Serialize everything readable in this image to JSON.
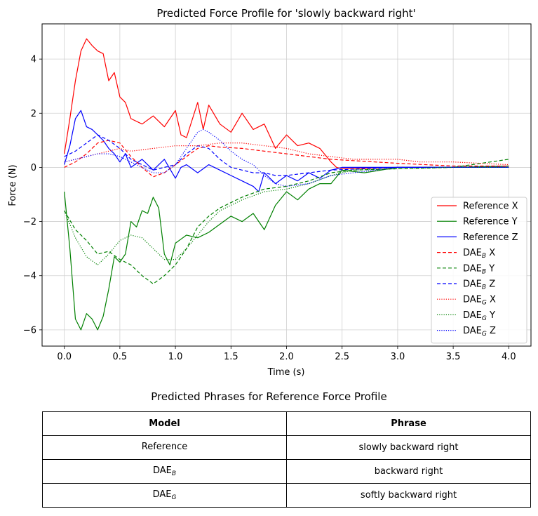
{
  "chart_data": {
    "type": "line",
    "title": "Predicted Force Profile for 'slowly backward right'",
    "xlabel": "Time (s)",
    "ylabel": "Force (N)",
    "xlim": [
      -0.2,
      4.2
    ],
    "ylim": [
      -6.6,
      5.3
    ],
    "xticks": [
      0.0,
      0.5,
      1.0,
      1.5,
      2.0,
      2.5,
      3.0,
      3.5,
      4.0
    ],
    "xtick_labels": [
      "0.0",
      "0.5",
      "1.0",
      "1.5",
      "2.0",
      "2.5",
      "3.0",
      "3.5",
      "4.0"
    ],
    "yticks": [
      -6,
      -4,
      -2,
      0,
      2,
      4
    ],
    "ytick_labels": [
      "−6",
      "−4",
      "−2",
      "0",
      "2",
      "4"
    ],
    "grid": true,
    "legend_position": "lower-right",
    "series": [
      {
        "name": "Reference X",
        "legend_base": "Reference",
        "legend_sub": "",
        "legend_axis": "X",
        "color": "#ff0000",
        "style": "solid",
        "x": [
          0.0,
          0.05,
          0.1,
          0.15,
          0.2,
          0.25,
          0.3,
          0.35,
          0.4,
          0.45,
          0.5,
          0.55,
          0.6,
          0.7,
          0.8,
          0.9,
          1.0,
          1.05,
          1.1,
          1.2,
          1.25,
          1.3,
          1.4,
          1.5,
          1.6,
          1.7,
          1.8,
          1.9,
          2.0,
          2.1,
          2.2,
          2.3,
          2.4,
          2.45,
          2.5,
          3.0,
          3.5,
          4.0
        ],
        "y": [
          0.5,
          1.8,
          3.2,
          4.3,
          4.75,
          4.5,
          4.3,
          4.2,
          3.2,
          3.5,
          2.6,
          2.4,
          1.8,
          1.6,
          1.9,
          1.5,
          2.1,
          1.2,
          1.1,
          2.4,
          1.4,
          2.3,
          1.6,
          1.3,
          2.0,
          1.4,
          1.6,
          0.7,
          1.2,
          0.8,
          0.9,
          0.7,
          0.2,
          0.0,
          -0.05,
          0.0,
          0.0,
          0.0
        ]
      },
      {
        "name": "Reference Y",
        "legend_base": "Reference",
        "legend_sub": "",
        "legend_axis": "Y",
        "color": "#008000",
        "style": "solid",
        "x": [
          0.0,
          0.05,
          0.1,
          0.15,
          0.2,
          0.25,
          0.3,
          0.35,
          0.4,
          0.45,
          0.5,
          0.55,
          0.6,
          0.65,
          0.7,
          0.75,
          0.8,
          0.85,
          0.9,
          0.95,
          1.0,
          1.1,
          1.2,
          1.3,
          1.4,
          1.5,
          1.6,
          1.7,
          1.8,
          1.9,
          2.0,
          2.1,
          2.2,
          2.3,
          2.4,
          2.5,
          2.7,
          3.0,
          3.5,
          4.0
        ],
        "y": [
          -0.9,
          -3.0,
          -5.6,
          -6.0,
          -5.4,
          -5.6,
          -6.0,
          -5.5,
          -4.5,
          -3.3,
          -3.5,
          -3.2,
          -2.0,
          -2.2,
          -1.6,
          -1.7,
          -1.1,
          -1.5,
          -3.2,
          -3.6,
          -2.8,
          -2.5,
          -2.6,
          -2.4,
          -2.1,
          -1.8,
          -2.0,
          -1.7,
          -2.3,
          -1.4,
          -0.9,
          -1.2,
          -0.8,
          -0.6,
          -0.6,
          -0.1,
          -0.2,
          0.0,
          0.0,
          0.05
        ]
      },
      {
        "name": "Reference Z",
        "legend_base": "Reference",
        "legend_sub": "",
        "legend_axis": "Z",
        "color": "#0000ff",
        "style": "solid",
        "x": [
          0.0,
          0.05,
          0.1,
          0.15,
          0.2,
          0.25,
          0.3,
          0.35,
          0.4,
          0.45,
          0.5,
          0.55,
          0.6,
          0.7,
          0.8,
          0.9,
          1.0,
          1.05,
          1.1,
          1.2,
          1.3,
          1.4,
          1.5,
          1.6,
          1.7,
          1.75,
          1.8,
          1.9,
          2.0,
          2.1,
          2.2,
          2.3,
          2.4,
          2.5,
          3.0,
          3.5,
          4.0
        ],
        "y": [
          0.1,
          0.8,
          1.8,
          2.1,
          1.5,
          1.4,
          1.2,
          1.0,
          0.7,
          0.5,
          0.2,
          0.5,
          0.0,
          0.3,
          -0.1,
          0.3,
          -0.4,
          0.0,
          0.1,
          -0.2,
          0.1,
          -0.1,
          -0.3,
          -0.5,
          -0.7,
          -0.9,
          -0.2,
          -0.6,
          -0.3,
          -0.5,
          -0.2,
          -0.4,
          -0.1,
          0.0,
          0.0,
          0.0,
          0.0
        ]
      },
      {
        "name": "DAE_B X",
        "legend_base": "DAE",
        "legend_sub": "B",
        "legend_axis": "X",
        "color": "#ff0000",
        "style": "dashed",
        "x": [
          0.0,
          0.1,
          0.2,
          0.3,
          0.4,
          0.5,
          0.6,
          0.7,
          0.8,
          0.9,
          1.0,
          1.1,
          1.2,
          1.3,
          1.4,
          1.6,
          1.8,
          2.0,
          2.2,
          2.4,
          2.6,
          3.0,
          3.5,
          4.0
        ],
        "y": [
          0.0,
          0.2,
          0.5,
          0.9,
          1.0,
          0.9,
          0.4,
          0.0,
          -0.35,
          -0.2,
          0.1,
          0.4,
          0.7,
          0.8,
          0.75,
          0.7,
          0.6,
          0.5,
          0.4,
          0.3,
          0.25,
          0.15,
          0.05,
          0.05
        ]
      },
      {
        "name": "DAE_B Y",
        "legend_base": "DAE",
        "legend_sub": "B",
        "legend_axis": "Y",
        "color": "#008000",
        "style": "dashed",
        "x": [
          0.0,
          0.1,
          0.2,
          0.3,
          0.4,
          0.5,
          0.6,
          0.7,
          0.8,
          0.9,
          1.0,
          1.1,
          1.2,
          1.3,
          1.4,
          1.5,
          1.6,
          1.8,
          2.0,
          2.2,
          2.4,
          2.6,
          3.0,
          3.5,
          4.0
        ],
        "y": [
          -1.6,
          -2.3,
          -2.7,
          -3.2,
          -3.1,
          -3.4,
          -3.6,
          -4.0,
          -4.3,
          -4.0,
          -3.6,
          -3.0,
          -2.2,
          -1.8,
          -1.5,
          -1.3,
          -1.1,
          -0.8,
          -0.7,
          -0.5,
          -0.2,
          -0.1,
          -0.05,
          0.0,
          0.3
        ]
      },
      {
        "name": "DAE_B Z",
        "legend_base": "DAE",
        "legend_sub": "B",
        "legend_axis": "Z",
        "color": "#0000ff",
        "style": "dashed",
        "x": [
          0.0,
          0.1,
          0.2,
          0.3,
          0.4,
          0.5,
          0.6,
          0.7,
          0.8,
          0.9,
          1.0,
          1.1,
          1.2,
          1.3,
          1.4,
          1.5,
          1.6,
          1.7,
          1.8,
          1.9,
          2.0,
          2.2,
          2.4,
          3.0,
          3.5,
          4.0
        ],
        "y": [
          0.4,
          0.6,
          0.9,
          1.2,
          1.0,
          0.7,
          0.3,
          0.1,
          -0.1,
          0.0,
          0.1,
          0.5,
          0.8,
          0.7,
          0.3,
          0.0,
          -0.1,
          -0.2,
          -0.2,
          -0.3,
          -0.3,
          -0.2,
          -0.1,
          0.0,
          0.0,
          0.0
        ]
      },
      {
        "name": "DAE_G X",
        "legend_base": "DAE",
        "legend_sub": "G",
        "legend_axis": "X",
        "color": "#ff0000",
        "style": "dotted",
        "x": [
          0.0,
          0.1,
          0.2,
          0.3,
          0.4,
          0.5,
          0.6,
          0.7,
          0.8,
          0.9,
          1.0,
          1.2,
          1.4,
          1.6,
          1.8,
          2.0,
          2.2,
          2.4,
          2.6,
          2.8,
          3.0,
          3.2,
          3.5,
          4.0
        ],
        "y": [
          0.2,
          0.3,
          0.4,
          0.5,
          0.6,
          0.7,
          0.6,
          0.65,
          0.7,
          0.75,
          0.8,
          0.8,
          0.9,
          0.9,
          0.8,
          0.7,
          0.5,
          0.4,
          0.3,
          0.3,
          0.3,
          0.2,
          0.2,
          0.1
        ]
      },
      {
        "name": "DAE_G Y",
        "legend_base": "DAE",
        "legend_sub": "G",
        "legend_axis": "Y",
        "color": "#008000",
        "style": "dotted",
        "x": [
          0.0,
          0.1,
          0.2,
          0.3,
          0.4,
          0.5,
          0.6,
          0.7,
          0.8,
          0.9,
          1.0,
          1.1,
          1.2,
          1.3,
          1.4,
          1.6,
          1.8,
          2.0,
          2.2,
          2.4,
          2.6,
          3.0,
          3.5,
          4.0
        ],
        "y": [
          -1.6,
          -2.6,
          -3.3,
          -3.6,
          -3.2,
          -2.7,
          -2.5,
          -2.6,
          -3.0,
          -3.4,
          -3.4,
          -3.0,
          -2.5,
          -2.0,
          -1.6,
          -1.2,
          -0.9,
          -0.8,
          -0.6,
          -0.3,
          -0.1,
          -0.05,
          0.0,
          0.0
        ]
      },
      {
        "name": "DAE_G Z",
        "legend_base": "DAE",
        "legend_sub": "G",
        "legend_axis": "Z",
        "color": "#0000ff",
        "style": "dotted",
        "x": [
          0.0,
          0.1,
          0.2,
          0.3,
          0.4,
          0.5,
          0.6,
          0.7,
          0.8,
          0.9,
          1.0,
          1.1,
          1.2,
          1.25,
          1.3,
          1.4,
          1.5,
          1.6,
          1.7,
          1.8,
          1.9,
          2.0,
          2.2,
          2.4,
          3.0,
          3.5,
          4.0
        ],
        "y": [
          0.2,
          0.3,
          0.4,
          0.5,
          0.5,
          0.4,
          0.2,
          0.0,
          -0.2,
          -0.2,
          0.1,
          0.7,
          1.3,
          1.4,
          1.3,
          1.0,
          0.6,
          0.3,
          0.1,
          -0.3,
          -0.6,
          -0.7,
          -0.6,
          -0.3,
          0.0,
          0.0,
          0.0
        ]
      }
    ]
  },
  "phrase_table": {
    "title": "Predicted Phrases for Reference Force Profile",
    "col_model": "Model",
    "col_phrase": "Phrase",
    "rows": [
      {
        "model_base": "Reference",
        "model_sub": "",
        "phrase": "slowly backward right"
      },
      {
        "model_base": "DAE",
        "model_sub": "B",
        "phrase": "backward right"
      },
      {
        "model_base": "DAE",
        "model_sub": "G",
        "phrase": "softly backward right"
      }
    ]
  }
}
